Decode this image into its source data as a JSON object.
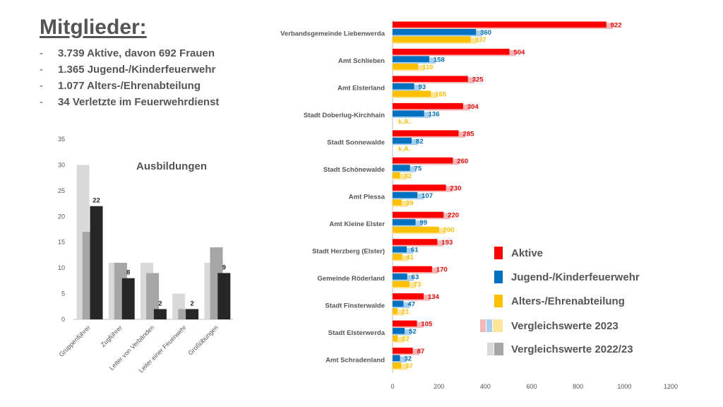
{
  "title": "Mitglieder:",
  "facts": [
    "3.739 Aktive, davon 692 Frauen",
    "1.365 Jugend-/Kinderfeuerwehr",
    "1.077 Alters-/Ehrenabteilung",
    "34 Verletzte im Feuerwehrdienst"
  ],
  "colors": {
    "aktive": "#ff0000",
    "jugend": "#0070c0",
    "alters": "#ffc000",
    "aktive_2023": "#f4b6b6",
    "jugend_2023": "#a9cfee",
    "alters_2023": "#ffe59a",
    "v2022_light": "#d9d9d9",
    "v2022_mid": "#a6a6a6",
    "current_dark": "#262626"
  },
  "chart_data": [
    {
      "type": "bar",
      "title": "Ausbildungen",
      "categories": [
        "Gruppenführer",
        "Zugführer",
        "Leiter von Verbänden",
        "Leiter einer Feuerwehr",
        "Großübungen"
      ],
      "ylim": [
        0,
        35
      ],
      "yticks": [
        "0",
        "5",
        "10",
        "15",
        "20",
        "25",
        "30",
        "35"
      ],
      "series": [
        {
          "values": [
            30,
            11,
            11,
            5,
            11
          ]
        },
        {
          "values": [
            17,
            11,
            9,
            2,
            14
          ]
        },
        {
          "values": [
            22,
            8,
            2,
            2,
            9
          ],
          "labels": [
            "22",
            "8",
            "2",
            "2",
            "9"
          ]
        }
      ]
    },
    {
      "type": "bar",
      "orientation": "horizontal",
      "categories": [
        "Verbandsgemeinde Liebenwerda",
        "Amt Schlieben",
        "Amt Elsterland",
        "Stadt Doberlug-Kirchhain",
        "Stadt Sonnewalde",
        "Stadt Schönewalde",
        "Amt Plessa",
        "Amt Kleine Elster",
        "Stadt Herzberg (Elster)",
        "Gemeinde Röderland",
        "Stadt Finsterwalde",
        "Stadt Elsterwerda",
        "Amt Schradenland"
      ],
      "xlim": [
        0,
        1200
      ],
      "xticks": [
        "0",
        "200",
        "400",
        "600",
        "800",
        "1000",
        "1200"
      ],
      "grid": false,
      "legend_position": "right",
      "series": [
        {
          "name": "Aktive",
          "values": [
            922,
            504,
            325,
            304,
            285,
            260,
            230,
            220,
            193,
            170,
            134,
            105,
            87
          ],
          "labels": [
            "922",
            "504",
            "325",
            "304",
            "285",
            "260",
            "230",
            "220",
            "193",
            "170",
            "134",
            "105",
            "87"
          ]
        },
        {
          "name": "Jugend-/Kinderfeuerwehr",
          "values": [
            360,
            158,
            93,
            136,
            82,
            75,
            107,
            99,
            61,
            63,
            47,
            52,
            32
          ],
          "labels": [
            "360",
            "158",
            "93",
            "136",
            "82",
            "75",
            "107",
            "99",
            "61",
            "63",
            "47",
            "52",
            "32"
          ]
        },
        {
          "name": "Alters-/Ehrenabteilung",
          "values": [
            337,
            110,
            165,
            null,
            null,
            32,
            39,
            200,
            41,
            73,
            21,
            22,
            37
          ],
          "labels": [
            "337",
            "110",
            "165",
            "k.A.",
            "k.A.",
            "32",
            "39",
            "200",
            "41",
            "73",
            "21",
            "22",
            "37"
          ]
        }
      ],
      "comparison_series": [
        {
          "name": "Vergleichswerte 2023"
        },
        {
          "name": "Vergleichswerte 2022/23"
        }
      ]
    }
  ]
}
